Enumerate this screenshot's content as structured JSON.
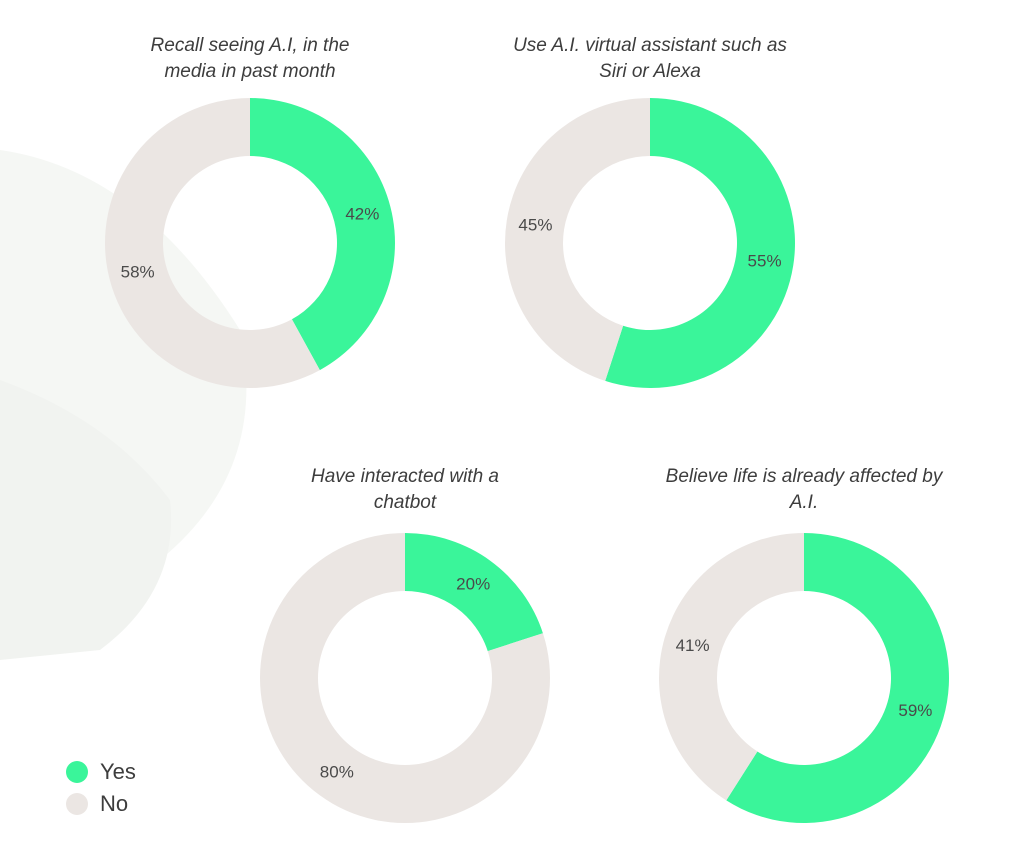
{
  "colors": {
    "yes": "#3af59a",
    "no": "#ebe6e3"
  },
  "legend": {
    "items": [
      {
        "label": "Yes",
        "color": "#3af59a"
      },
      {
        "label": "No",
        "color": "#ebe6e3"
      }
    ]
  },
  "chart_data": [
    {
      "type": "pie",
      "title": "Recall seeing A.I, in the media in past month",
      "title_lines": [
        "Recall seeing A.I, in the",
        "media in past month"
      ],
      "categories": [
        "Yes",
        "No"
      ],
      "values": [
        42,
        58
      ],
      "labels": [
        "42%",
        "58%"
      ]
    },
    {
      "type": "pie",
      "title": "Use A.I. virtual assistant such as Siri or Alexa",
      "title_lines": [
        "Use A.I. virtual assistant such as",
        "Siri or Alexa"
      ],
      "categories": [
        "Yes",
        "No"
      ],
      "values": [
        55,
        45
      ],
      "labels": [
        "55%",
        "45%"
      ]
    },
    {
      "type": "pie",
      "title": "Have interacted with a chatbot",
      "title_lines": [
        "Have interacted with a",
        "chatbot"
      ],
      "categories": [
        "Yes",
        "No"
      ],
      "values": [
        20,
        80
      ],
      "labels": [
        "20%",
        "80%"
      ]
    },
    {
      "type": "pie",
      "title": "Believe life is already affected by A.I.",
      "title_lines": [
        "Believe life is already affected by",
        "A.I."
      ],
      "categories": [
        "Yes",
        "No"
      ],
      "values": [
        59,
        41
      ],
      "labels": [
        "59%",
        "41%"
      ]
    }
  ]
}
